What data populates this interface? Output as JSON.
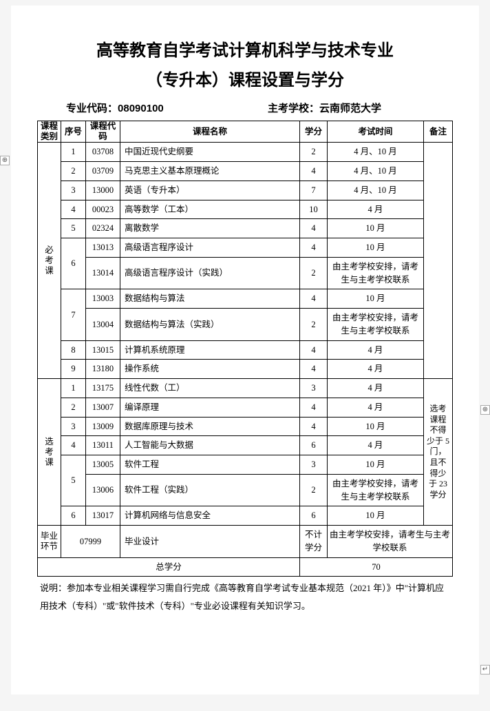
{
  "title_line1": "高等教育自学考试计算机科学与技术专业",
  "title_line2": "（专升本）课程设置与学分",
  "major_code_label": "专业代码：",
  "major_code": "08090100",
  "school_label": "主考学校：",
  "school": "云南师范大学",
  "headers": {
    "category": "课程类别",
    "seq": "序号",
    "code": "课程代码",
    "name": "课程名称",
    "credit": "学分",
    "exam_time": "考试时间",
    "remark": "备注"
  },
  "cat_required": "必考课",
  "cat_elective": "选考课",
  "cat_grad": "毕业环节",
  "required_rows": [
    {
      "seq": "1",
      "code": "03708",
      "name": "中国近现代史纲要",
      "credit": "2",
      "time": "4 月、10 月"
    },
    {
      "seq": "2",
      "code": "03709",
      "name": "马克思主义基本原理概论",
      "credit": "4",
      "time": "4 月、10 月"
    },
    {
      "seq": "3",
      "code": "13000",
      "name": "英语（专升本）",
      "credit": "7",
      "time": "4 月、10 月"
    },
    {
      "seq": "4",
      "code": "00023",
      "name": "高等数学（工本）",
      "credit": "10",
      "time": "4 月"
    },
    {
      "seq": "5",
      "code": "02324",
      "name": "离散数学",
      "credit": "4",
      "time": "10 月"
    },
    {
      "seq": "6",
      "code": "13013",
      "name": "高级语言程序设计",
      "credit": "4",
      "time": "10 月",
      "span": 2
    },
    {
      "code": "13014",
      "name": "高级语言程序设计（实践）",
      "credit": "2",
      "time": "由主考学校安排，请考生与主考学校联系"
    },
    {
      "seq": "7",
      "code": "13003",
      "name": "数据结构与算法",
      "credit": "4",
      "time": "10 月",
      "span": 2
    },
    {
      "code": "13004",
      "name": "数据结构与算法（实践）",
      "credit": "2",
      "time": "由主考学校安排，请考生与主考学校联系"
    },
    {
      "seq": "8",
      "code": "13015",
      "name": "计算机系统原理",
      "credit": "4",
      "time": "4 月"
    },
    {
      "seq": "9",
      "code": "13180",
      "name": "操作系统",
      "credit": "4",
      "time": "4 月"
    }
  ],
  "elective_rows": [
    {
      "seq": "1",
      "code": "13175",
      "name": "线性代数（工）",
      "credit": "3",
      "time": "4 月"
    },
    {
      "seq": "2",
      "code": "13007",
      "name": "编译原理",
      "credit": "4",
      "time": "4 月"
    },
    {
      "seq": "3",
      "code": "13009",
      "name": "数据库原理与技术",
      "credit": "4",
      "time": "10 月"
    },
    {
      "seq": "4",
      "code": "13011",
      "name": "人工智能与大数据",
      "credit": "6",
      "time": "4 月"
    },
    {
      "seq": "5",
      "code": "13005",
      "name": "软件工程",
      "credit": "3",
      "time": "10 月",
      "span": 2
    },
    {
      "code": "13006",
      "name": "软件工程（实践）",
      "credit": "2",
      "time": "由主考学校安排，请考生与主考学校联系"
    },
    {
      "seq": "6",
      "code": "13017",
      "name": "计算机网络与信息安全",
      "credit": "6",
      "time": "10 月"
    }
  ],
  "elective_remark": "选考课程不得少于 5 门，且不得少于 23 学分",
  "grad_row": {
    "code": "07999",
    "name": "毕业设计",
    "credit": "不计学分",
    "time": "由主考学校安排，请考生与主考学校联系"
  },
  "total_label": "总学分",
  "total_value": "70",
  "footnote": "说明：参加本专业相关课程学习需自行完成《高等教育自学考试专业基本规范（2021 年）》中\"计算机应用技术（专科）\"或\"软件技术（专科）\"专业必设课程有关知识学习。"
}
